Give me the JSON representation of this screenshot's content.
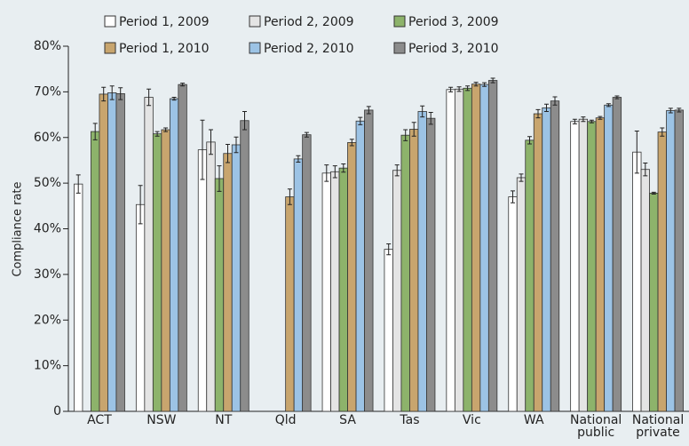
{
  "chart_data": {
    "type": "bar",
    "y_label": "Compliance rate",
    "categories": [
      "ACT",
      "NSW",
      "NT",
      "Qld",
      "SA",
      "Tas",
      "Vic",
      "WA",
      "National public",
      "National private"
    ],
    "series": [
      {
        "name": "Period 1, 2009",
        "color": "#ffffff",
        "values": [
          49.8,
          45.3,
          57.3,
          null,
          52.2,
          35.5,
          70.5,
          47,
          63.5,
          56.8
        ],
        "errors": [
          2,
          4.2,
          6.5,
          null,
          1.8,
          1.2,
          0.5,
          1.3,
          0.5,
          4.6
        ]
      },
      {
        "name": "Period 2, 2009",
        "color": "#e4e4e4",
        "values": [
          null,
          68.8,
          59,
          null,
          52.5,
          52.8,
          70.6,
          51.2,
          64,
          53
        ],
        "errors": [
          null,
          1.8,
          2.7,
          null,
          1.3,
          1.2,
          0.5,
          0.8,
          0.5,
          1.4
        ]
      },
      {
        "name": "Period 3, 2009",
        "color": "#8db36b",
        "values": [
          61.3,
          60.8,
          51,
          null,
          53.3,
          60.5,
          70.8,
          59.4,
          63.5,
          47.8
        ],
        "errors": [
          1.8,
          0.5,
          2.8,
          null,
          0.9,
          1.2,
          0.5,
          0.8,
          0.3,
          0.2
        ]
      },
      {
        "name": "Period 1, 2010",
        "color": "#c8a56e",
        "values": [
          69.5,
          61.7,
          56.5,
          47,
          58.9,
          61.8,
          71.7,
          65.2,
          64.3,
          61.2
        ],
        "errors": [
          1.5,
          0.4,
          2,
          1.7,
          0.7,
          1.5,
          0.4,
          0.9,
          0.3,
          0.9
        ]
      },
      {
        "name": "Period 2, 2010",
        "color": "#9cc3e5",
        "values": [
          69.8,
          68.5,
          58.4,
          55.3,
          63.6,
          65.7,
          71.6,
          66.5,
          67.1,
          65.9
        ],
        "errors": [
          1.5,
          0.3,
          1.7,
          0.7,
          0.8,
          1.2,
          0.4,
          0.8,
          0.3,
          0.5
        ]
      },
      {
        "name": "Period 3, 2010",
        "color": "#8c8c8c",
        "values": [
          69.6,
          71.6,
          63.7,
          60.6,
          66,
          64.2,
          72.5,
          68,
          68.8,
          66
        ],
        "errors": [
          1.3,
          0.3,
          2,
          0.5,
          0.8,
          1.3,
          0.5,
          0.9,
          0.3,
          0.4
        ]
      }
    ],
    "ylim": [
      0,
      80
    ],
    "yticks": [
      {
        "value": 0,
        "label": "0"
      },
      {
        "value": 10,
        "label": "10%"
      },
      {
        "value": 20,
        "label": "20%"
      },
      {
        "value": 30,
        "label": "30%"
      },
      {
        "value": 40,
        "label": "40%"
      },
      {
        "value": 50,
        "label": "50%"
      },
      {
        "value": 60,
        "label": "60%"
      },
      {
        "value": 70,
        "label": "70%"
      },
      {
        "value": 80,
        "label": "80%"
      }
    ]
  }
}
